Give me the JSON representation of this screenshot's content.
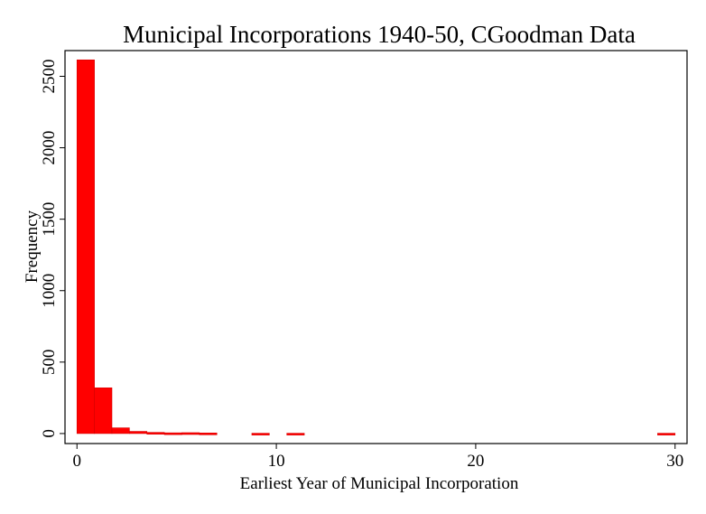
{
  "chart_data": {
    "type": "bar",
    "title": "Municipal Incorporations 1940-50, CGoodman Data",
    "xlabel": "Earliest Year of Municipal Incorporation",
    "ylabel": "Frequency",
    "xlim": [
      -0.6,
      30.6
    ],
    "ylim": [
      -70,
      2680
    ],
    "xticks": [
      0,
      10,
      20,
      30
    ],
    "yticks": [
      0,
      500,
      1000,
      1500,
      2000,
      2500
    ],
    "bar_color": "#ff0000",
    "bin_width": 0.8772,
    "bins": [
      {
        "start": 0.0,
        "value": 2615
      },
      {
        "start": 0.8772,
        "value": 320
      },
      {
        "start": 1.7544,
        "value": 40
      },
      {
        "start": 2.6316,
        "value": 15
      },
      {
        "start": 3.5088,
        "value": 8
      },
      {
        "start": 4.386,
        "value": 5
      },
      {
        "start": 5.2632,
        "value": 6
      },
      {
        "start": 6.1404,
        "value": 4
      },
      {
        "start": 8.7719,
        "value": 2
      },
      {
        "start": 10.5263,
        "value": 2
      },
      {
        "start": 29.1228,
        "value": 2
      }
    ]
  }
}
